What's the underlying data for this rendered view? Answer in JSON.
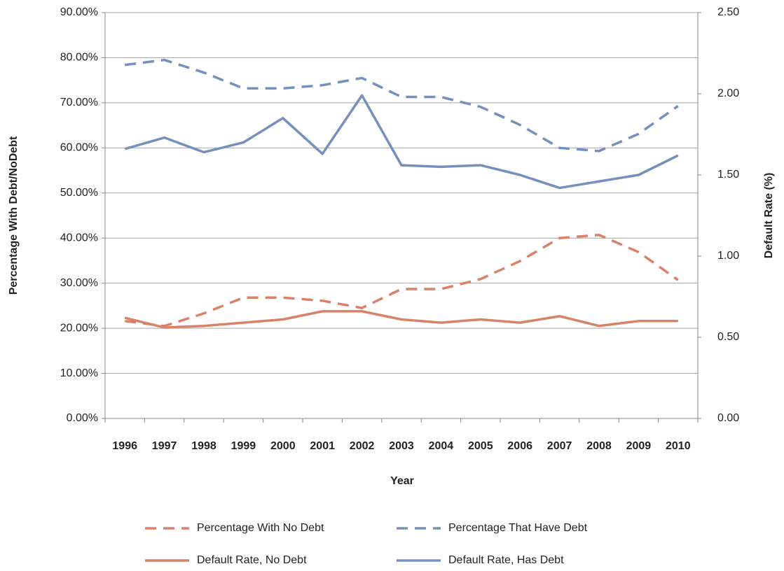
{
  "chart_data": {
    "type": "line",
    "x_label": "Year",
    "y_label": "Percentage With Debt/NoDebt",
    "y2_label": "Default Rate (%)",
    "categories": [
      "1996",
      "1997",
      "1998",
      "1999",
      "2000",
      "2001",
      "2002",
      "2003",
      "2004",
      "2005",
      "2006",
      "2007",
      "2008",
      "2009",
      "2010"
    ],
    "series": [
      {
        "name": "Percentage With No Debt",
        "color": "#d9826a",
        "dashed": true,
        "values": [
          21.6,
          20.5,
          23.3,
          26.8,
          26.8,
          26.1,
          24.5,
          28.7,
          28.7,
          30.9,
          34.9,
          40.0,
          40.7,
          36.9,
          30.7
        ]
      },
      {
        "name": "Percentage That Have Debt",
        "color": "#7590bd",
        "dashed": true,
        "values": [
          78.4,
          79.5,
          76.7,
          73.2,
          73.2,
          73.9,
          75.5,
          71.3,
          71.3,
          69.1,
          65.1,
          60.0,
          59.3,
          63.1,
          69.3
        ]
      },
      {
        "name": "Default Rate, No Debt",
        "color": "#d9826a",
        "dashed": false,
        "axis": "y2",
        "values": [
          0.62,
          0.56,
          0.57,
          0.59,
          0.61,
          0.66,
          0.66,
          0.61,
          0.59,
          0.61,
          0.59,
          0.63,
          0.57,
          0.6,
          0.6
        ]
      },
      {
        "name": "Default Rate, Has Debt",
        "color": "#7590bd",
        "dashed": false,
        "axis": "y2",
        "values": [
          1.66,
          1.73,
          1.64,
          1.7,
          1.85,
          1.63,
          1.99,
          1.56,
          1.55,
          1.56,
          1.5,
          1.42,
          1.46,
          1.5,
          1.62
        ]
      }
    ],
    "ylim": [
      0,
      90
    ],
    "yticks": [
      {
        "value": 0,
        "label": "0.00%"
      },
      {
        "value": 10,
        "label": "10.00%"
      },
      {
        "value": 20,
        "label": "20.00%"
      },
      {
        "value": 30,
        "label": "30.00%"
      },
      {
        "value": 40,
        "label": "40.00%"
      },
      {
        "value": 50,
        "label": "50.00%"
      },
      {
        "value": 60,
        "label": "60.00%"
      },
      {
        "value": 70,
        "label": "70.00%"
      },
      {
        "value": 80,
        "label": "80.00%"
      },
      {
        "value": 90,
        "label": "90.00%"
      }
    ],
    "y2lim": [
      0,
      2.5
    ],
    "y2ticks": [
      {
        "value": 0,
        "label": "0.00"
      },
      {
        "value": 0.5,
        "label": "0.50"
      },
      {
        "value": 1,
        "label": "1.00"
      },
      {
        "value": 1.5,
        "label": "1.50"
      },
      {
        "value": 2,
        "label": "2.00"
      },
      {
        "value": 2.5,
        "label": "2.50"
      }
    ],
    "grid": true,
    "legend": "bottom"
  }
}
